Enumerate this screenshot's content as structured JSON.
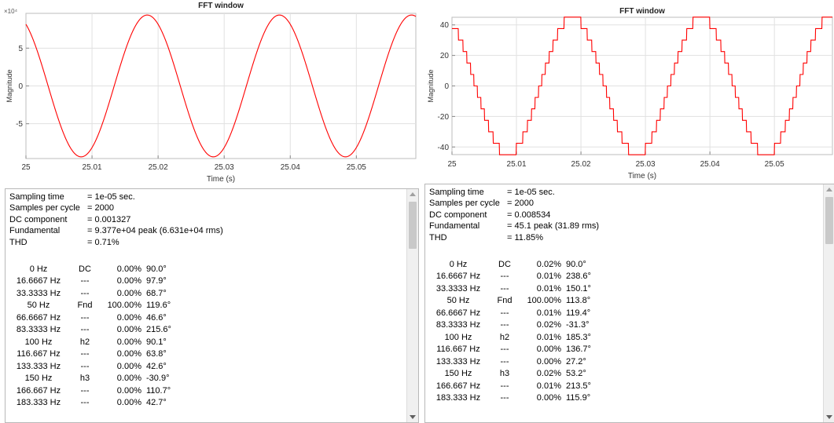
{
  "panels": [
    {
      "chart_data": {
        "type": "line",
        "title": "FFT window",
        "xlabel": "Time (s)",
        "ylabel": "Magnitude",
        "y_exponent_label": "×10⁴",
        "xlim": [
          25,
          25.059
        ],
        "ylim": [
          -9.6,
          9.6
        ],
        "xticks": [
          "25",
          "25.01",
          "25.02",
          "25.03",
          "25.04",
          "25.05"
        ],
        "yticks": [
          "5",
          "0",
          "-5"
        ],
        "series": [
          {
            "color": "#ff0000",
            "waveform": "sine",
            "amplitude": 9.377,
            "frequency_hz": 50,
            "phase_deg": 119.6,
            "harmonics": []
          }
        ],
        "grid": true
      },
      "report": {
        "header": [
          {
            "label": "Sampling time",
            "value": "= 1e-05 sec."
          },
          {
            "label": "Samples per cycle",
            "value": "= 2000"
          },
          {
            "label": "DC component",
            "value": "= 0.001327"
          },
          {
            "label": "Fundamental",
            "value": "= 9.377e+04 peak (6.631e+04 rms)"
          },
          {
            "label": "THD",
            "value": "= 0.71%"
          }
        ],
        "rows": [
          {
            "freq": "0 Hz",
            "label": "DC",
            "mag": "0.00%",
            "phase": "90.0°"
          },
          {
            "freq": "16.6667 Hz",
            "label": "---",
            "mag": "0.00%",
            "phase": "97.9°"
          },
          {
            "freq": "33.3333 Hz",
            "label": "---",
            "mag": "0.00%",
            "phase": "68.7°"
          },
          {
            "freq": "50 Hz",
            "label": "Fnd",
            "mag": "100.00%",
            "phase": "119.6°"
          },
          {
            "freq": "66.6667 Hz",
            "label": "---",
            "mag": "0.00%",
            "phase": "46.6°"
          },
          {
            "freq": "83.3333 Hz",
            "label": "---",
            "mag": "0.00%",
            "phase": "215.6°"
          },
          {
            "freq": "100 Hz",
            "label": "h2",
            "mag": "0.00%",
            "phase": "90.1°"
          },
          {
            "freq": "116.667 Hz",
            "label": "---",
            "mag": "0.00%",
            "phase": "63.8°"
          },
          {
            "freq": "133.333 Hz",
            "label": "---",
            "mag": "0.00%",
            "phase": "42.6°"
          },
          {
            "freq": "150 Hz",
            "label": "h3",
            "mag": "0.00%",
            "phase": "-30.9°"
          },
          {
            "freq": "166.667 Hz",
            "label": "---",
            "mag": "0.00%",
            "phase": "110.7°"
          },
          {
            "freq": "183.333 Hz",
            "label": "---",
            "mag": "0.00%",
            "phase": "42.7°"
          }
        ]
      }
    },
    {
      "chart_data": {
        "type": "line",
        "title": "FFT window",
        "xlabel": "Time (s)",
        "ylabel": "Magnitude",
        "y_exponent_label": "",
        "xlim": [
          25,
          25.059
        ],
        "ylim": [
          -45,
          45
        ],
        "xticks": [
          "25",
          "25.01",
          "25.02",
          "25.03",
          "25.04",
          "25.05"
        ],
        "yticks": [
          "40",
          "20",
          "0",
          "-20",
          "-40"
        ],
        "series": [
          {
            "color": "#ff0000",
            "waveform": "quantized-sine",
            "amplitude": 45.1,
            "frequency_hz": 50,
            "phase_deg": 113.8,
            "quantization_levels": 12
          }
        ],
        "grid": true
      },
      "report": {
        "header": [
          {
            "label": "Sampling time",
            "value": "= 1e-05 sec."
          },
          {
            "label": "Samples per cycle",
            "value": "= 2000"
          },
          {
            "label": "DC component",
            "value": "= 0.008534"
          },
          {
            "label": "Fundamental",
            "value": "= 45.1 peak (31.89 rms)"
          },
          {
            "label": "THD",
            "value": "= 11.85%"
          }
        ],
        "rows": [
          {
            "freq": "0 Hz",
            "label": "DC",
            "mag": "0.02%",
            "phase": "90.0°"
          },
          {
            "freq": "16.6667 Hz",
            "label": "---",
            "mag": "0.01%",
            "phase": "238.6°"
          },
          {
            "freq": "33.3333 Hz",
            "label": "---",
            "mag": "0.01%",
            "phase": "150.1°"
          },
          {
            "freq": "50 Hz",
            "label": "Fnd",
            "mag": "100.00%",
            "phase": "113.8°"
          },
          {
            "freq": "66.6667 Hz",
            "label": "---",
            "mag": "0.01%",
            "phase": "119.4°"
          },
          {
            "freq": "83.3333 Hz",
            "label": "---",
            "mag": "0.02%",
            "phase": "-31.3°"
          },
          {
            "freq": "100 Hz",
            "label": "h2",
            "mag": "0.01%",
            "phase": "185.3°"
          },
          {
            "freq": "116.667 Hz",
            "label": "---",
            "mag": "0.00%",
            "phase": "136.7°"
          },
          {
            "freq": "133.333 Hz",
            "label": "---",
            "mag": "0.00%",
            "phase": "27.2°"
          },
          {
            "freq": "150 Hz",
            "label": "h3",
            "mag": "0.02%",
            "phase": "53.2°"
          },
          {
            "freq": "166.667 Hz",
            "label": "---",
            "mag": "0.01%",
            "phase": "213.5°"
          },
          {
            "freq": "183.333 Hz",
            "label": "---",
            "mag": "0.00%",
            "phase": "115.9°"
          }
        ]
      }
    }
  ]
}
